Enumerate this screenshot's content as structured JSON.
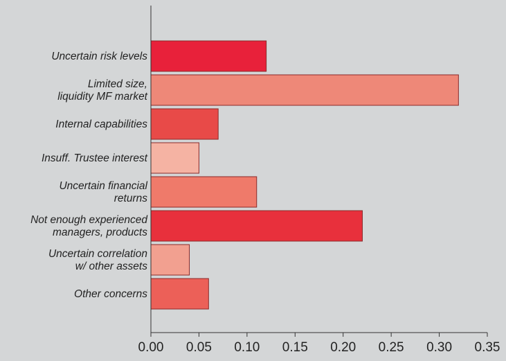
{
  "chart_data": {
    "type": "bar",
    "orientation": "horizontal",
    "title": "",
    "xlabel": "",
    "ylabel": "",
    "xlim": [
      0,
      0.35
    ],
    "grid": false,
    "legend": "none",
    "x_ticks": [
      "0.00",
      "0.05",
      "0.10",
      "0.15",
      "0.20",
      "0.25",
      "0.30",
      "0.35"
    ],
    "categories": [
      [
        "Uncertain risk levels"
      ],
      [
        "Limited size,",
        "liquidity MF market"
      ],
      [
        "Internal capabilities"
      ],
      [
        "Insuff. Trustee interest"
      ],
      [
        "Uncertain financial",
        "returns"
      ],
      [
        "Not enough experienced",
        "managers, products"
      ],
      [
        "Uncertain correlation",
        "w/ other assets"
      ],
      [
        "Other concerns"
      ]
    ],
    "values": [
      0.12,
      0.32,
      0.07,
      0.05,
      0.11,
      0.22,
      0.04,
      0.06
    ],
    "colors": [
      "#e8213a",
      "#ee8878",
      "#e84a48",
      "#f5b3a3",
      "#ef7a6a",
      "#e8303c",
      "#f2a090",
      "#ec6058"
    ],
    "background": "#d4d6d7"
  }
}
